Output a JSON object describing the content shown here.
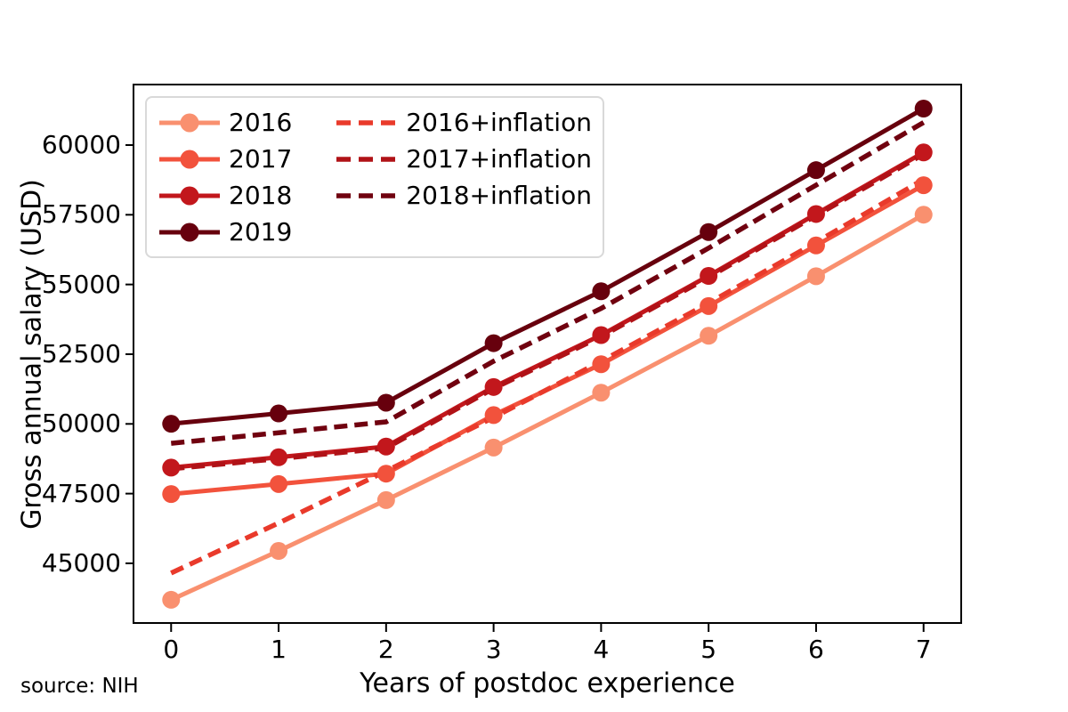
{
  "figure": {
    "source_note": "source: NIH"
  },
  "chart_data": {
    "type": "line",
    "title": "",
    "xlabel": "Years of postdoc experience",
    "ylabel": "Gross annual salary (USD)",
    "x": [
      0,
      1,
      2,
      3,
      4,
      5,
      6,
      7
    ],
    "xticks": [
      0,
      1,
      2,
      3,
      4,
      5,
      6,
      7
    ],
    "yticks": [
      45000,
      47500,
      50000,
      52500,
      55000,
      57500,
      60000
    ],
    "xlim": [
      -0.35,
      7.35
    ],
    "ylim": [
      42860,
      62170
    ],
    "grid": false,
    "legend_position": "upper-left",
    "legend_columns": 2,
    "series": [
      {
        "name": "2016",
        "style": "solid",
        "color": "#f9906f",
        "values": [
          43692,
          45444,
          47268,
          49152,
          51120,
          53160,
          55296,
          57504
        ]
      },
      {
        "name": "2017",
        "style": "solid",
        "color": "#f2523c",
        "values": [
          47484,
          47844,
          48216,
          50316,
          52140,
          54228,
          56400,
          58560
        ]
      },
      {
        "name": "2018",
        "style": "solid",
        "color": "#c2171c",
        "values": [
          48432,
          48804,
          49188,
          51324,
          53184,
          55308,
          57528,
          59736
        ]
      },
      {
        "name": "2019",
        "style": "solid",
        "color": "#67000d",
        "values": [
          50004,
          50376,
          50760,
          52896,
          54756,
          56880,
          59100,
          61308
        ]
      },
      {
        "name": "2016+inflation",
        "style": "dashed",
        "color": "#e93a2b",
        "values": [
          44653,
          46444,
          48308,
          50233,
          52245,
          54330,
          56513,
          58769
        ]
      },
      {
        "name": "2017+inflation",
        "style": "dashed",
        "color": "#b01217",
        "values": [
          48386,
          48753,
          49132,
          51272,
          53131,
          55258,
          57472,
          59673
        ]
      },
      {
        "name": "2018+inflation",
        "style": "dashed",
        "color": "#70010f",
        "values": [
          49304,
          49682,
          50073,
          52248,
          54141,
          56304,
          58564,
          60811
        ]
      }
    ]
  }
}
